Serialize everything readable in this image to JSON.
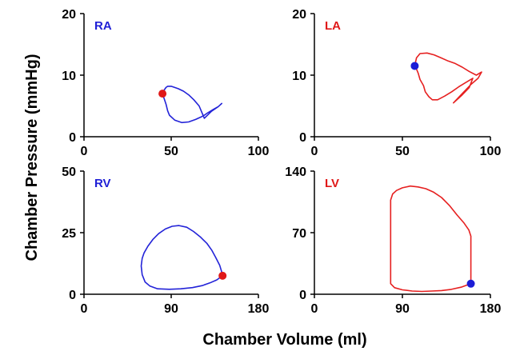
{
  "figure": {
    "ylabel": "Chamber Pressure (mmHg)",
    "xlabel": "Chamber Volume (ml)"
  },
  "chart_data": [
    {
      "type": "line",
      "title": "RA",
      "title_color": "#1f1fd6",
      "line_color": "#2323d8",
      "marker_color": "#e01818",
      "xlim": [
        0,
        100
      ],
      "ylim": [
        0,
        20
      ],
      "xticks": [
        0,
        50,
        100
      ],
      "yticks": [
        0,
        10,
        20
      ],
      "series": [
        {
          "x": [
            45,
            47,
            48,
            49,
            52,
            56,
            60,
            64,
            67,
            69,
            70,
            71,
            74,
            77,
            79,
            77,
            73,
            69,
            66,
            63,
            60,
            57,
            54,
            52,
            50,
            48,
            47,
            46,
            45
          ],
          "y": [
            7.0,
            5.3,
            4.2,
            3.5,
            2.7,
            2.3,
            2.4,
            2.8,
            3.2,
            3.5,
            3.7,
            3.9,
            4.4,
            4.9,
            5.4,
            4.9,
            4.1,
            3.0,
            5.0,
            6.0,
            6.8,
            7.4,
            7.8,
            8.0,
            8.2,
            8.2,
            8.0,
            7.6,
            7.0
          ]
        }
      ],
      "marker": {
        "x": 45,
        "y": 7.0
      }
    },
    {
      "type": "line",
      "title": "LA",
      "title_color": "#e01818",
      "line_color": "#e62020",
      "marker_color": "#1c1cd6",
      "xlim": [
        0,
        100
      ],
      "ylim": [
        0,
        20
      ],
      "xticks": [
        0,
        50,
        100
      ],
      "yticks": [
        0,
        10,
        20
      ],
      "series": [
        {
          "x": [
            57,
            58,
            60,
            64,
            68,
            72,
            76,
            80,
            84,
            88,
            92,
            95,
            93,
            89,
            84,
            79,
            84,
            88,
            90,
            86,
            82,
            78,
            74,
            70,
            67,
            65,
            63,
            62,
            60,
            59,
            58,
            57
          ],
          "y": [
            11.5,
            12.8,
            13.5,
            13.6,
            13.3,
            12.8,
            12.3,
            11.9,
            11.3,
            10.6,
            10.0,
            10.5,
            9.5,
            8.5,
            7.0,
            5.5,
            6.8,
            8.0,
            9.5,
            8.8,
            8.1,
            7.3,
            6.6,
            6.0,
            6.0,
            6.5,
            7.3,
            8.3,
            9.3,
            10.3,
            11.0,
            11.5
          ]
        }
      ],
      "marker": {
        "x": 57,
        "y": 11.5
      }
    },
    {
      "type": "line",
      "title": "RV",
      "title_color": "#1f1fd6",
      "line_color": "#2323d8",
      "marker_color": "#e01818",
      "xlim": [
        0,
        180
      ],
      "ylim": [
        0,
        50
      ],
      "xticks": [
        0,
        90,
        180
      ],
      "yticks": [
        0,
        25,
        50
      ],
      "series": [
        {
          "x": [
            143,
            137,
            130,
            122,
            112,
            100,
            88,
            76,
            68,
            63,
            60,
            59,
            60,
            62,
            66,
            71,
            77,
            84,
            91,
            98,
            106,
            113,
            120,
            127,
            132,
            136,
            140,
            142,
            143
          ],
          "y": [
            7.5,
            5.8,
            4.6,
            3.5,
            2.7,
            2.2,
            2.0,
            2.2,
            3.3,
            5.0,
            8.0,
            11.5,
            14.5,
            16.8,
            19.5,
            22.2,
            24.6,
            26.5,
            27.6,
            27.9,
            27.2,
            25.5,
            23.3,
            20.6,
            17.8,
            14.9,
            11.8,
            9.2,
            7.5
          ]
        }
      ],
      "marker": {
        "x": 143,
        "y": 7.5
      }
    },
    {
      "type": "line",
      "title": "LV",
      "title_color": "#e01818",
      "line_color": "#e62020",
      "marker_color": "#1c1cd6",
      "xlim": [
        0,
        180
      ],
      "ylim": [
        0,
        140
      ],
      "xticks": [
        0,
        90,
        180
      ],
      "yticks": [
        0,
        70,
        140
      ],
      "series": [
        {
          "x": [
            160,
            150,
            140,
            130,
            120,
            110,
            100,
            90,
            82,
            78,
            78,
            78,
            80,
            84,
            90,
            98,
            106,
            114,
            122,
            130,
            138,
            146,
            153,
            158,
            160,
            160,
            160
          ],
          "y": [
            12,
            8,
            5.5,
            4.2,
            3.6,
            3.2,
            3.6,
            5,
            7.5,
            12,
            40,
            107,
            114,
            118,
            121,
            123,
            122,
            120,
            116,
            110,
            101,
            90,
            81,
            73,
            66,
            40,
            12
          ]
        }
      ],
      "marker": {
        "x": 160,
        "y": 12
      }
    }
  ]
}
